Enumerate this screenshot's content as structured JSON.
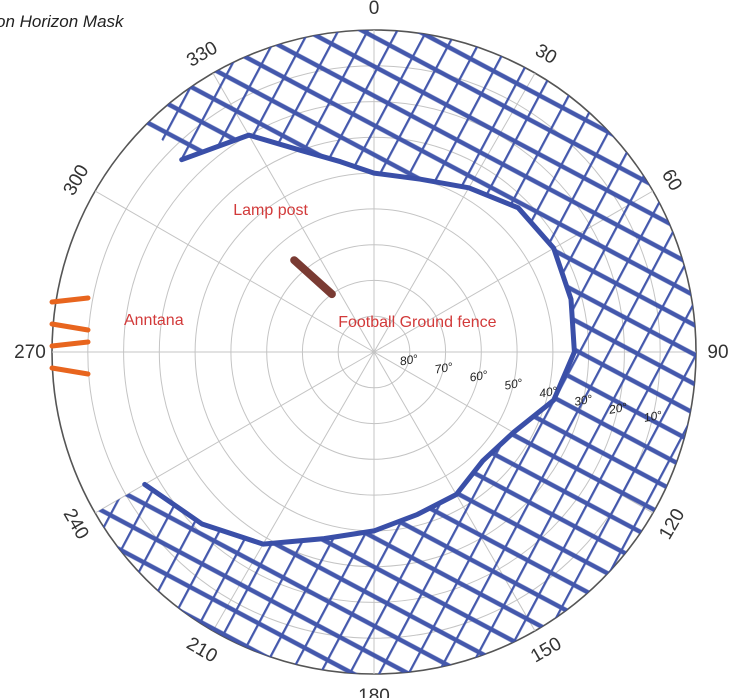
{
  "chart_data": {
    "type": "polar",
    "title": "on Horizon Mask",
    "azimuth_ticks": [
      "0",
      "30",
      "60",
      "90",
      "120",
      "150",
      "180",
      "210",
      "240",
      "270",
      "300",
      "330"
    ],
    "azimuth_tick_values": [
      0,
      30,
      60,
      90,
      120,
      150,
      180,
      210,
      240,
      270,
      300,
      330
    ],
    "elevation_ticks": [
      "80°",
      "70°",
      "60°",
      "50°",
      "40°",
      "30°",
      "20°",
      "10°"
    ],
    "elevation_tick_values": [
      80,
      70,
      60,
      50,
      40,
      30,
      20,
      10
    ],
    "radial_range_deg": [
      0,
      90
    ],
    "grid": true,
    "annotations": [
      {
        "text": "Lamp post",
        "azimuth": 323,
        "elevation": 42
      },
      {
        "text": "Football Ground fence",
        "azimuth": 60,
        "elevation": 76
      },
      {
        "text": "Anntana",
        "azimuth": 277,
        "elevation": 28
      }
    ],
    "horizon_mask": {
      "name": "",
      "azimuth": [
        315,
        330,
        340,
        350,
        0,
        15,
        30,
        45,
        60,
        75,
        90,
        105,
        120,
        135,
        150,
        165,
        180,
        195,
        210,
        225,
        240
      ],
      "elevation": [
        14,
        20,
        30,
        36,
        40,
        40,
        37,
        33,
        32,
        33,
        34,
        38,
        45,
        47,
        44,
        43,
        40,
        36,
        28,
        22,
        16
      ]
    },
    "colors": {
      "mask": "#3a4fa8",
      "annotation_text": "#d23a3a",
      "lamp_post": "#7a3b33",
      "antenna": "#e8651e",
      "grid": "#c4c4c4"
    }
  }
}
